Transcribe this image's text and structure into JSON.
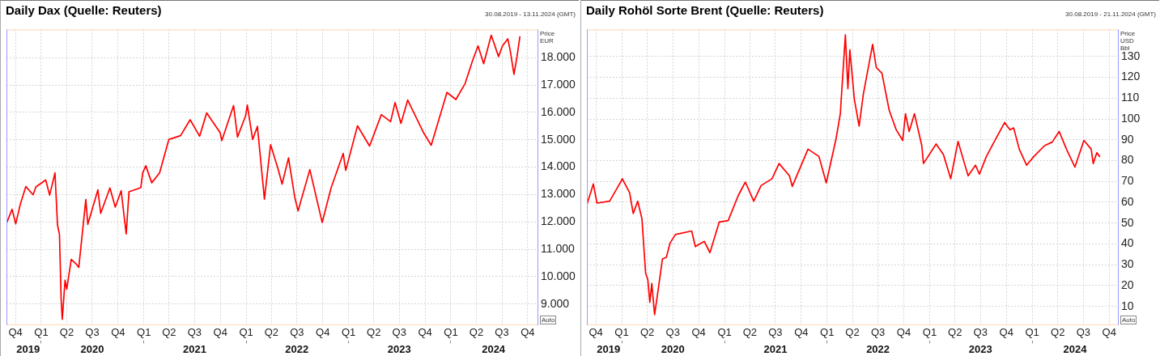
{
  "chart_data": [
    {
      "type": "line",
      "title": "Daily Dax (Quelle: Reuters)",
      "subtitle": "30.08.2019 - 13.11.2024 (GMT)",
      "ylabel": "Price EUR",
      "annotations": [
        "Auto"
      ],
      "grid": true,
      "marker": "none",
      "line_style": "solid",
      "x": [
        "2019-08-30",
        "2019-09-19",
        "2019-10-02",
        "2019-10-18",
        "2019-11-07",
        "2019-12-03",
        "2019-12-13",
        "2020-01-17",
        "2020-01-31",
        "2020-02-19",
        "2020-02-28",
        "2020-03-06",
        "2020-03-12",
        "2020-03-16",
        "2020-03-26",
        "2020-04-01",
        "2020-04-17",
        "2020-05-04",
        "2020-05-14",
        "2020-06-08",
        "2020-06-15",
        "2020-07-21",
        "2020-07-31",
        "2020-09-02",
        "2020-09-21",
        "2020-10-12",
        "2020-10-30",
        "2020-11-09",
        "2020-12-21",
        "2020-12-28",
        "2021-01-08",
        "2021-01-29",
        "2021-02-26",
        "2021-03-31",
        "2021-05-12",
        "2021-06-15",
        "2021-07-19",
        "2021-08-13",
        "2021-09-30",
        "2021-10-06",
        "2021-11-17",
        "2021-12-01",
        "2021-12-30",
        "2022-01-05",
        "2022-01-24",
        "2022-02-10",
        "2022-03-07",
        "2022-03-29",
        "2022-04-25",
        "2022-05-09",
        "2022-06-01",
        "2022-06-23",
        "2022-07-05",
        "2022-08-16",
        "2022-09-29",
        "2022-10-31",
        "2022-12-13",
        "2022-12-22",
        "2023-02-02",
        "2023-03-17",
        "2023-04-28",
        "2023-05-31",
        "2023-06-16",
        "2023-07-07",
        "2023-07-31",
        "2023-09-26",
        "2023-10-23",
        "2023-12-18",
        "2024-01-19",
        "2024-02-21",
        "2024-03-19",
        "2024-04-07",
        "2024-04-27",
        "2024-05-24",
        "2024-06-19",
        "2024-07-03",
        "2024-07-22",
        "2024-07-31",
        "2024-08-13",
        "2024-08-24",
        "2024-09-03"
      ],
      "series": [
        {
          "color": "#ff0000",
          "values": [
            11940,
            12460,
            11930,
            12630,
            13290,
            12990,
            13280,
            13530,
            12980,
            13790,
            11890,
            11540,
            9160,
            8440,
            9870,
            9540,
            10630,
            10470,
            10340,
            12820,
            11910,
            13170,
            12310,
            13240,
            12540,
            13140,
            11560,
            13100,
            13250,
            13790,
            14050,
            13430,
            13790,
            15010,
            15150,
            15730,
            15130,
            15980,
            15260,
            14970,
            16250,
            15100,
            15880,
            16270,
            15010,
            15490,
            12830,
            14820,
            13920,
            13380,
            14340,
            12910,
            12400,
            13910,
            11980,
            13250,
            14500,
            13880,
            15510,
            14770,
            15920,
            15660,
            16360,
            15600,
            16450,
            15250,
            14800,
            16730,
            16470,
            17060,
            17910,
            18430,
            17780,
            18820,
            18040,
            18430,
            18690,
            18240,
            17390,
            18040,
            18760
          ]
        }
      ],
      "xlim": [
        "2019-08-30",
        "2024-11-05"
      ],
      "xticks": [
        {
          "value": "2019-10-01",
          "label": "Q4"
        },
        {
          "value": "2020-01-01",
          "label": "Q1"
        },
        {
          "value": "2020-04-01",
          "label": "Q2"
        },
        {
          "value": "2020-07-01",
          "label": "Q3"
        },
        {
          "value": "2020-10-01",
          "label": "Q4"
        },
        {
          "value": "2021-01-01",
          "label": "Q1"
        },
        {
          "value": "2021-04-01",
          "label": "Q2"
        },
        {
          "value": "2021-07-01",
          "label": "Q3"
        },
        {
          "value": "2021-10-01",
          "label": "Q4"
        },
        {
          "value": "2022-01-01",
          "label": "Q1"
        },
        {
          "value": "2022-04-01",
          "label": "Q2"
        },
        {
          "value": "2022-07-01",
          "label": "Q3"
        },
        {
          "value": "2022-10-01",
          "label": "Q4"
        },
        {
          "value": "2023-01-01",
          "label": "Q1"
        },
        {
          "value": "2023-04-01",
          "label": "Q2"
        },
        {
          "value": "2023-07-01",
          "label": "Q3"
        },
        {
          "value": "2023-10-01",
          "label": "Q4"
        },
        {
          "value": "2024-01-01",
          "label": "Q1"
        },
        {
          "value": "2024-04-01",
          "label": "Q2"
        },
        {
          "value": "2024-07-01",
          "label": "Q3"
        },
        {
          "value": "2024-10-01",
          "label": "Q4"
        }
      ],
      "x2lim": [
        "2019-08-30",
        "2024-11-05"
      ],
      "x2ticks": [
        {
          "value": "2019-11-15",
          "label": "2019"
        },
        {
          "value": "2020-01-01",
          "label": null
        },
        {
          "value": "2020-07-01",
          "label": "2020"
        },
        {
          "value": "2021-01-01",
          "label": null
        },
        {
          "value": "2021-07-01",
          "label": "2021"
        },
        {
          "value": "2022-01-01",
          "label": null
        },
        {
          "value": "2022-07-01",
          "label": "2022"
        },
        {
          "value": "2023-01-01",
          "label": null
        },
        {
          "value": "2023-07-01",
          "label": "2023"
        },
        {
          "value": "2024-01-01",
          "label": null
        },
        {
          "value": "2024-06-01",
          "label": "2024"
        }
      ],
      "ylim": [
        8230,
        19030
      ],
      "yticks": [
        {
          "value": 9000,
          "label": "9.000"
        },
        {
          "value": 10000,
          "label": "10.000"
        },
        {
          "value": 11000,
          "label": "11.000"
        },
        {
          "value": 12000,
          "label": "12.000"
        },
        {
          "value": 13000,
          "label": "13.000"
        },
        {
          "value": 14000,
          "label": "14.000"
        },
        {
          "value": 15000,
          "label": "15.000"
        },
        {
          "value": 16000,
          "label": "16.000"
        },
        {
          "value": 17000,
          "label": "17.000"
        },
        {
          "value": 18000,
          "label": "18.000"
        }
      ]
    },
    {
      "type": "line",
      "title": "Daily Rohöl Sorte Brent (Quelle: Reuters)",
      "subtitle": "30.08.2019 - 21.11.2024 (GMT)",
      "ylabel": "Price USD Bbl",
      "annotations": [
        "Auto"
      ],
      "grid": true,
      "marker": "none",
      "line_style": "solid",
      "x": [
        "2019-08-30",
        "2019-09-22",
        "2019-10-05",
        "2019-11-19",
        "2019-12-28",
        "2020-01-03",
        "2020-01-29",
        "2020-02-11",
        "2020-02-27",
        "2020-03-13",
        "2020-03-26",
        "2020-04-03",
        "2020-04-10",
        "2020-04-17",
        "2020-04-27",
        "2020-05-06",
        "2020-05-25",
        "2020-06-08",
        "2020-06-21",
        "2020-07-10",
        "2020-09-06",
        "2020-09-19",
        "2020-10-21",
        "2020-11-10",
        "2020-12-13",
        "2021-01-14",
        "2021-02-18",
        "2021-03-16",
        "2021-04-15",
        "2021-05-11",
        "2021-06-19",
        "2021-07-14",
        "2021-08-20",
        "2021-08-30",
        "2021-10-25",
        "2021-12-03",
        "2021-12-29",
        "2022-02-02",
        "2022-02-17",
        "2022-03-07",
        "2022-03-16",
        "2022-03-23",
        "2022-04-08",
        "2022-04-25",
        "2022-05-10",
        "2022-06-12",
        "2022-06-25",
        "2022-07-15",
        "2022-08-10",
        "2022-09-04",
        "2022-09-27",
        "2022-10-07",
        "2022-10-20",
        "2022-11-08",
        "2022-12-04",
        "2022-12-10",
        "2023-01-24",
        "2023-02-19",
        "2023-03-17",
        "2023-04-12",
        "2023-05-05",
        "2023-05-18",
        "2023-06-13",
        "2023-06-27",
        "2023-07-22",
        "2023-08-18",
        "2023-09-25",
        "2023-10-14",
        "2023-10-27",
        "2023-11-16",
        "2023-12-12",
        "2024-01-07",
        "2024-02-14",
        "2024-03-12",
        "2024-04-06",
        "2024-05-02",
        "2024-06-01",
        "2024-07-03",
        "2024-07-29",
        "2024-08-05",
        "2024-08-18",
        "2024-08-28"
      ],
      "series": [
        {
          "color": "#ff0000",
          "values": [
            58.8,
            68.8,
            59.6,
            60.5,
            69.7,
            71.3,
            64.6,
            54.6,
            60.5,
            52,
            26,
            22.8,
            11.9,
            21,
            6,
            14.4,
            32.8,
            33.6,
            40.4,
            44.5,
            46.2,
            38.7,
            41.2,
            35.8,
            50.5,
            51.2,
            63,
            69.7,
            60.5,
            68,
            71.3,
            78.6,
            72.7,
            67.6,
            85.5,
            82,
            69.3,
            90.6,
            102.5,
            140.4,
            114.5,
            133.2,
            109.4,
            96.6,
            111.9,
            135.8,
            124.7,
            122,
            104.2,
            94.8,
            89.7,
            102.5,
            94,
            102.5,
            87.2,
            78.6,
            88,
            82.9,
            71.3,
            89.2,
            78.6,
            72.7,
            77.8,
            73.5,
            82,
            88.9,
            98.3,
            94.8,
            95.7,
            85.5,
            77.8,
            82,
            87.2,
            88.9,
            94,
            85.5,
            76.9,
            89.7,
            85.5,
            78.6,
            83.8,
            82
          ]
        }
      ],
      "xlim": [
        "2019-08-30",
        "2024-11-01"
      ],
      "xticks": [
        {
          "value": "2019-10-01",
          "label": "Q4"
        },
        {
          "value": "2020-01-01",
          "label": "Q1"
        },
        {
          "value": "2020-04-01",
          "label": "Q2"
        },
        {
          "value": "2020-07-01",
          "label": "Q3"
        },
        {
          "value": "2020-10-01",
          "label": "Q4"
        },
        {
          "value": "2021-01-01",
          "label": "Q1"
        },
        {
          "value": "2021-04-01",
          "label": "Q2"
        },
        {
          "value": "2021-07-01",
          "label": "Q3"
        },
        {
          "value": "2021-10-01",
          "label": "Q4"
        },
        {
          "value": "2022-01-01",
          "label": "Q1"
        },
        {
          "value": "2022-04-01",
          "label": "Q2"
        },
        {
          "value": "2022-07-01",
          "label": "Q3"
        },
        {
          "value": "2022-10-01",
          "label": "Q4"
        },
        {
          "value": "2023-01-01",
          "label": "Q1"
        },
        {
          "value": "2023-04-01",
          "label": "Q2"
        },
        {
          "value": "2023-07-01",
          "label": "Q3"
        },
        {
          "value": "2023-10-01",
          "label": "Q4"
        },
        {
          "value": "2024-01-01",
          "label": "Q1"
        },
        {
          "value": "2024-04-01",
          "label": "Q2"
        },
        {
          "value": "2024-07-01",
          "label": "Q3"
        },
        {
          "value": "2024-10-01",
          "label": "Q4"
        }
      ],
      "x2lim": [
        "2019-08-30",
        "2024-11-01"
      ],
      "x2ticks": [
        {
          "value": "2019-11-15",
          "label": "2019"
        },
        {
          "value": "2020-01-01",
          "label": null
        },
        {
          "value": "2020-07-01",
          "label": "2020"
        },
        {
          "value": "2021-01-01",
          "label": null
        },
        {
          "value": "2021-07-01",
          "label": "2021"
        },
        {
          "value": "2022-01-01",
          "label": null
        },
        {
          "value": "2022-07-01",
          "label": "2022"
        },
        {
          "value": "2023-01-01",
          "label": null
        },
        {
          "value": "2023-07-01",
          "label": "2023"
        },
        {
          "value": "2024-01-01",
          "label": null
        },
        {
          "value": "2024-06-01",
          "label": "2024"
        }
      ],
      "ylim": [
        1,
        143
      ],
      "yticks": [
        10,
        20,
        30,
        40,
        50,
        60,
        70,
        80,
        90,
        100,
        110,
        120,
        130
      ]
    }
  ]
}
